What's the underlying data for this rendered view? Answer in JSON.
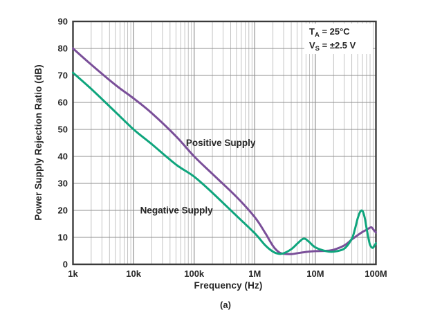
{
  "figure": {
    "caption": "(a)"
  },
  "annotation": {
    "line1": {
      "pre": "T",
      "sub": "A",
      "post": " = 25°C"
    },
    "line2": {
      "pre": "V",
      "sub": "S",
      "post": " = ±2.5 V"
    }
  },
  "chart_data": {
    "type": "line",
    "title": "",
    "xlabel": "Frequency (Hz)",
    "ylabel": "Power Supply Rejection Ratio (dB)",
    "x_scale": "log",
    "x_range_hz": [
      1000,
      100000000
    ],
    "x_tick_labels": [
      "1k",
      "10k",
      "100k",
      "1M",
      "10M",
      "100M"
    ],
    "y_range_db": [
      0,
      90
    ],
    "y_tick_step": 10,
    "grid": "log minor verticals 2-9 per decade, horizontal every 10 dB",
    "legend_position": "labels on curves",
    "colors": {
      "positive": "#7a4f99",
      "negative": "#0fa57d",
      "grid_major": "#8f8f8f",
      "grid_minor": "#b4b4b4",
      "frame": "#3a3a3a",
      "text": "#262626"
    },
    "series": [
      {
        "name": "Positive Supply",
        "color_key": "positive",
        "label_at_hz_db": [
          275000,
          45
        ],
        "points_hz_db": [
          [
            1000,
            80
          ],
          [
            2000,
            74
          ],
          [
            5000,
            66.5
          ],
          [
            10000,
            61.5
          ],
          [
            20000,
            56
          ],
          [
            50000,
            47.5
          ],
          [
            100000,
            40
          ],
          [
            200000,
            33.5
          ],
          [
            500000,
            25
          ],
          [
            1000000,
            17.5
          ],
          [
            1500000,
            11.5
          ],
          [
            2000000,
            6.8
          ],
          [
            2500000,
            4.5
          ],
          [
            3000000,
            3.9
          ],
          [
            4000000,
            3.8
          ],
          [
            5000000,
            4.1
          ],
          [
            7000000,
            4.6
          ],
          [
            10000000,
            4.9
          ],
          [
            15000000,
            5.0
          ],
          [
            20000000,
            5.4
          ],
          [
            30000000,
            7.0
          ],
          [
            40000000,
            9.2
          ],
          [
            50000000,
            10.8
          ],
          [
            60000000,
            12.0
          ],
          [
            70000000,
            12.8
          ],
          [
            80000000,
            13.6
          ],
          [
            85000000,
            13.7
          ],
          [
            90000000,
            13.0
          ],
          [
            100000000,
            11.8
          ]
        ]
      },
      {
        "name": "Negative Supply",
        "color_key": "negative",
        "label_at_hz_db": [
          51000,
          20
        ],
        "points_hz_db": [
          [
            1000,
            71
          ],
          [
            2000,
            65
          ],
          [
            5000,
            56.5
          ],
          [
            10000,
            50
          ],
          [
            20000,
            44.5
          ],
          [
            50000,
            37
          ],
          [
            100000,
            32.5
          ],
          [
            200000,
            26.5
          ],
          [
            500000,
            18
          ],
          [
            1000000,
            11.5
          ],
          [
            1500000,
            7
          ],
          [
            2000000,
            4.7
          ],
          [
            2500000,
            3.9
          ],
          [
            3000000,
            4.1
          ],
          [
            4000000,
            5.6
          ],
          [
            5000000,
            7.6
          ],
          [
            6000000,
            9.2
          ],
          [
            6500000,
            9.5
          ],
          [
            7000000,
            9.3
          ],
          [
            8000000,
            8.2
          ],
          [
            10000000,
            6.3
          ],
          [
            15000000,
            4.9
          ],
          [
            20000000,
            4.7
          ],
          [
            30000000,
            5.8
          ],
          [
            40000000,
            9.5
          ],
          [
            45000000,
            13
          ],
          [
            50000000,
            17
          ],
          [
            55000000,
            19.5
          ],
          [
            60000000,
            19.8
          ],
          [
            65000000,
            17.5
          ],
          [
            70000000,
            13.5
          ],
          [
            75000000,
            9.8
          ],
          [
            80000000,
            7.2
          ],
          [
            85000000,
            6.3
          ],
          [
            90000000,
            6.2
          ],
          [
            100000000,
            7.8
          ]
        ]
      }
    ]
  }
}
